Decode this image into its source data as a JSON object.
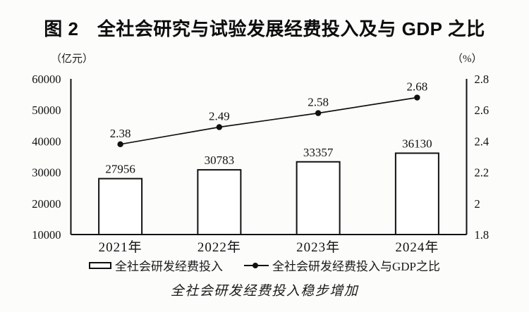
{
  "title": "图 2　全社会研究与试验发展经费投入及与 GDP 之比",
  "caption": "全社会研发经费投入稳步增加",
  "chart_data": {
    "type": "bar",
    "combo": "bar+line-dual-axis",
    "categories": [
      "2021年",
      "2022年",
      "2023年",
      "2024年"
    ],
    "series": [
      {
        "name": "全社会研发经费投入",
        "type": "bar",
        "axis": "left",
        "values": [
          27956,
          30783,
          33357,
          36130
        ]
      },
      {
        "name": "全社会研发经费投入与GDP之比",
        "type": "line",
        "axis": "right",
        "values": [
          2.38,
          2.49,
          2.58,
          2.68
        ]
      }
    ],
    "left_axis": {
      "unit": "（亿元）",
      "min": 10000,
      "max": 60000,
      "tick_labels": [
        "60000",
        "50000",
        "40000",
        "30000",
        "20000",
        "10000"
      ]
    },
    "right_axis": {
      "unit": "（%）",
      "min": 1.8,
      "max": 2.8,
      "tick_labels": [
        "2.8",
        "2.6",
        "2.4",
        "2.2",
        "2",
        "1.8"
      ]
    },
    "grid": false,
    "legend_position": "bottom"
  },
  "colors": {
    "background": "#fcfcfa",
    "ink": "#111111",
    "bar_fill": "#ffffff",
    "bar_stroke": "#111111",
    "line": "#111111"
  }
}
